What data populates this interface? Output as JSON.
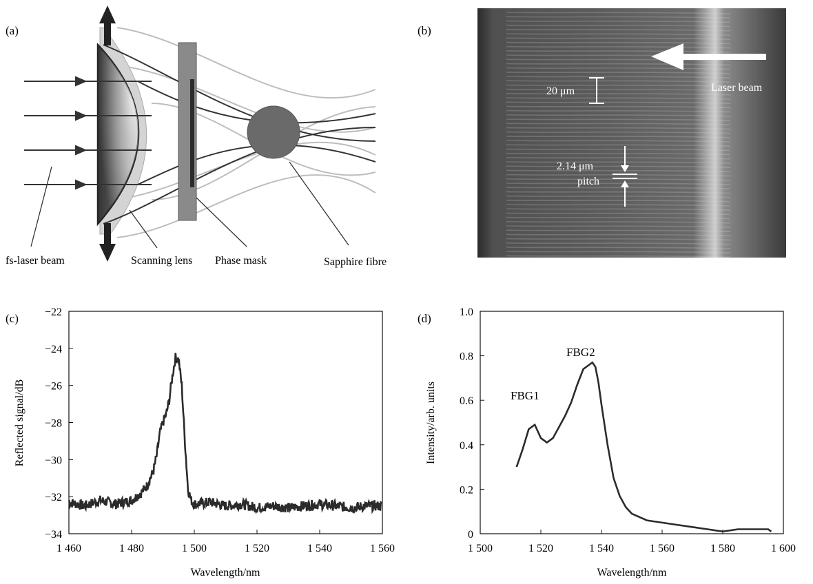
{
  "panels": {
    "a": {
      "label": "(a)",
      "fs_laser_label": "fs-laser beam",
      "lens_label": "Scanning lens",
      "mask_label": "Phase mask",
      "fibre_label": "Sapphire fibre"
    },
    "b": {
      "label": "(b)",
      "beam_label": "Laser beam",
      "scale_label": "20 μm",
      "pitch_value": "2.14 μm",
      "pitch_word": "pitch"
    },
    "c": {
      "label": "(c)"
    },
    "d": {
      "label": "(d)"
    }
  },
  "colors": {
    "curve": "#2b2b2b",
    "lens_dark": "#4a4a4a",
    "mask": "#7a7a7a",
    "fibre": "#666666",
    "micrograph": "#3b3b3b"
  },
  "chart_data": [
    {
      "panel": "(c)",
      "type": "line",
      "xlabel": "Wavelength/nm",
      "ylabel": "Reflected signal/dB",
      "xlim": [
        1460,
        1560
      ],
      "ylim": [
        -34,
        -22
      ],
      "xticks": [
        "1 460",
        "1 480",
        "1 500",
        "1 520",
        "1 540",
        "1 560"
      ],
      "yticks": [
        "−34",
        "−32",
        "−30",
        "−28",
        "−26",
        "−24",
        "−22"
      ],
      "grid": false,
      "series": [
        {
          "x": [
            1460,
            1465,
            1470,
            1475,
            1480,
            1483,
            1485,
            1487,
            1488,
            1489,
            1490,
            1491,
            1492,
            1493,
            1494,
            1495,
            1496,
            1497,
            1498,
            1499,
            1500,
            1505,
            1510,
            1515,
            1520,
            1525,
            1530,
            1535,
            1540,
            1545,
            1550,
            1555,
            1560
          ],
          "y": [
            -32.3,
            -32.5,
            -32.2,
            -32.4,
            -32.2,
            -31.8,
            -31.4,
            -30.6,
            -29.8,
            -28.6,
            -28.0,
            -27.6,
            -26.8,
            -25.5,
            -24.5,
            -24.6,
            -26.0,
            -29.0,
            -31.6,
            -32.2,
            -32.4,
            -32.3,
            -32.5,
            -32.4,
            -32.6,
            -32.5,
            -32.6,
            -32.5,
            -32.4,
            -32.5,
            -32.6,
            -32.5,
            -32.5
          ]
        }
      ]
    },
    {
      "panel": "(d)",
      "type": "line",
      "xlabel": "Wavelength/nm",
      "ylabel": "Intensity/arb. units",
      "xlim": [
        1500,
        1600
      ],
      "ylim": [
        0,
        1.0
      ],
      "xticks": [
        "1 500",
        "1 520",
        "1 540",
        "1 560",
        "1 580",
        "1 600"
      ],
      "yticks": [
        "0",
        "0.2",
        "0.4",
        "0.6",
        "0.8",
        "1.0"
      ],
      "grid": false,
      "annotations": [
        "FBG1",
        "FBG2"
      ],
      "series": [
        {
          "x": [
            1512,
            1514,
            1516,
            1518,
            1520,
            1522,
            1524,
            1526,
            1528,
            1530,
            1532,
            1534,
            1536,
            1537,
            1538,
            1539,
            1540,
            1542,
            1544,
            1546,
            1548,
            1550,
            1555,
            1560,
            1565,
            1570,
            1575,
            1580,
            1585,
            1590,
            1595,
            1596
          ],
          "y": [
            0.3,
            0.38,
            0.47,
            0.49,
            0.43,
            0.41,
            0.43,
            0.48,
            0.53,
            0.59,
            0.67,
            0.74,
            0.76,
            0.77,
            0.75,
            0.68,
            0.58,
            0.4,
            0.25,
            0.17,
            0.12,
            0.09,
            0.06,
            0.05,
            0.04,
            0.03,
            0.02,
            0.01,
            0.02,
            0.02,
            0.02,
            0.01
          ]
        }
      ]
    }
  ]
}
